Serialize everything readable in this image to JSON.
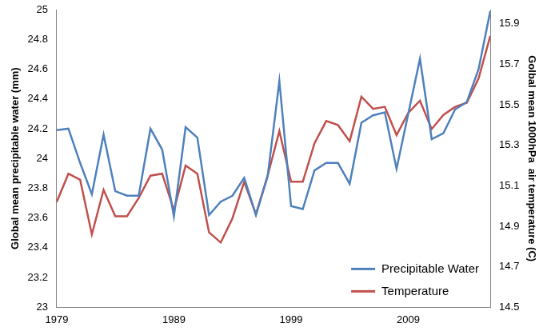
{
  "chart_data": {
    "type": "line",
    "x": [
      1979,
      1980,
      1981,
      1982,
      1983,
      1984,
      1985,
      1986,
      1987,
      1988,
      1989,
      1990,
      1991,
      1992,
      1993,
      1994,
      1995,
      1996,
      1997,
      1998,
      1999,
      2000,
      2001,
      2002,
      2003,
      2004,
      2005,
      2006,
      2007,
      2008,
      2009,
      2010,
      2011,
      2012,
      2013,
      2014,
      2015,
      2016
    ],
    "series": [
      {
        "name": "Precipitable Water",
        "color": "#4f81bd",
        "axis": "y",
        "values": [
          24.19,
          24.2,
          23.97,
          23.76,
          24.16,
          23.78,
          23.75,
          23.75,
          24.2,
          24.06,
          23.61,
          24.21,
          24.14,
          23.62,
          23.71,
          23.75,
          23.87,
          23.62,
          23.88,
          24.52,
          23.68,
          23.66,
          23.92,
          23.97,
          23.97,
          23.83,
          24.24,
          24.29,
          24.31,
          23.93,
          24.3,
          24.67,
          24.13,
          24.17,
          24.33,
          24.38,
          24.6,
          24.99
        ]
      },
      {
        "name": "Temperature",
        "color": "#c0504d",
        "axis": "y2",
        "values": [
          15.02,
          15.16,
          15.13,
          14.86,
          15.08,
          14.95,
          14.95,
          15.04,
          15.15,
          15.16,
          14.98,
          15.2,
          15.16,
          14.87,
          14.82,
          14.94,
          15.12,
          14.96,
          15.15,
          15.37,
          15.12,
          15.12,
          15.31,
          15.42,
          15.4,
          15.32,
          15.54,
          15.48,
          15.49,
          15.35,
          15.46,
          15.52,
          15.38,
          15.45,
          15.49,
          15.51,
          15.63,
          15.84
        ]
      }
    ],
    "xlim": [
      1979,
      2016
    ],
    "xticks": [
      1979,
      1989,
      1999,
      2009
    ],
    "ylim": [
      23,
      25
    ],
    "yticks": [
      23,
      23.2,
      23.4,
      23.6,
      23.8,
      24,
      24.2,
      24.4,
      24.6,
      24.8,
      25
    ],
    "y2lim": [
      14.5,
      15.97
    ],
    "y2ticks": [
      14.5,
      14.7,
      14.9,
      15.1,
      15.3,
      15.5,
      15.7,
      15.9
    ],
    "y_label": "Global mean precipitable water (mm)",
    "y2_label": "Golbal mean 1000hPa  air temperature (C)",
    "legend": "lower right",
    "grid": false
  }
}
